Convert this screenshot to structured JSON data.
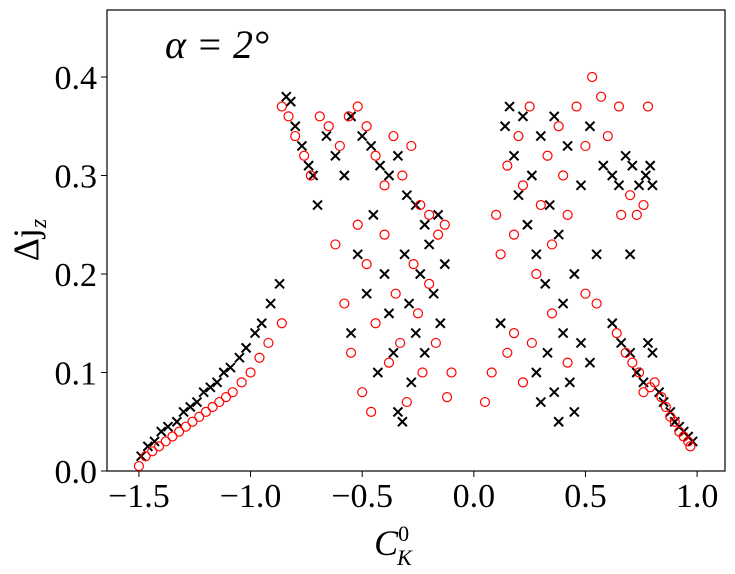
{
  "chart_data": {
    "type": "scatter",
    "annotation": "α = 2°",
    "xlabel": {
      "base": "C",
      "sup": "0",
      "sub": "K"
    },
    "ylabel": {
      "base": "Δj",
      "sub": "z"
    },
    "xlim": [
      -1.643,
      1.125
    ],
    "ylim": [
      0,
      0.468
    ],
    "xticks": [
      {
        "value": -1.5,
        "label": "−1.5"
      },
      {
        "value": -1.0,
        "label": "−1.0"
      },
      {
        "value": -0.5,
        "label": "−0.5"
      },
      {
        "value": 0.0,
        "label": "0.0"
      },
      {
        "value": 0.5,
        "label": "0.5"
      },
      {
        "value": 1.0,
        "label": "1.0"
      }
    ],
    "yticks": [
      {
        "value": 0.0,
        "label": "0.0"
      },
      0.1,
      0.2,
      0.3,
      0.4
    ],
    "grid": false,
    "series": [
      {
        "color": "#000000",
        "marker": "x",
        "x": [
          -1.49,
          -1.46,
          -1.43,
          -1.4,
          -1.37,
          -1.33,
          -1.3,
          -1.27,
          -1.24,
          -1.21,
          -1.18,
          -1.15,
          -1.12,
          -1.09,
          -1.05,
          -1.02,
          -0.98,
          -0.95,
          -0.91,
          -0.87,
          -0.84,
          -0.82,
          -0.8,
          -0.77,
          -0.74,
          -0.72,
          -0.7,
          -0.66,
          -0.62,
          -0.58,
          -0.55,
          -0.5,
          -0.46,
          -0.42,
          -0.38,
          -0.34,
          -0.3,
          -0.26,
          -0.22,
          -0.16,
          -0.55,
          -0.52,
          -0.48,
          -0.45,
          -0.43,
          -0.4,
          -0.38,
          -0.36,
          -0.34,
          -0.32,
          -0.31,
          -0.29,
          -0.28,
          -0.26,
          -0.24,
          -0.22,
          -0.2,
          -0.18,
          -0.15,
          -0.13,
          0.12,
          0.14,
          0.16,
          0.18,
          0.2,
          0.22,
          0.24,
          0.26,
          0.28,
          0.3,
          0.32,
          0.34,
          0.36,
          0.38,
          0.4,
          0.42,
          0.45,
          0.48,
          0.52,
          0.55,
          0.28,
          0.3,
          0.33,
          0.36,
          0.38,
          0.4,
          0.43,
          0.45,
          0.48,
          0.52,
          0.62,
          0.66,
          0.7,
          0.73,
          0.76,
          0.78,
          0.8,
          0.83,
          0.85,
          0.88,
          0.9,
          0.92,
          0.94,
          0.96,
          0.98,
          0.58,
          0.62,
          0.65,
          0.68,
          0.71,
          0.74,
          0.77,
          0.79,
          0.8,
          0.7
        ],
        "values": [
          0.015,
          0.025,
          0.03,
          0.04,
          0.045,
          0.05,
          0.06,
          0.065,
          0.07,
          0.08,
          0.085,
          0.09,
          0.1,
          0.105,
          0.115,
          0.125,
          0.14,
          0.15,
          0.17,
          0.19,
          0.38,
          0.375,
          0.35,
          0.33,
          0.31,
          0.3,
          0.27,
          0.34,
          0.32,
          0.3,
          0.36,
          0.34,
          0.33,
          0.31,
          0.3,
          0.32,
          0.28,
          0.27,
          0.25,
          0.26,
          0.14,
          0.22,
          0.18,
          0.26,
          0.1,
          0.2,
          0.16,
          0.12,
          0.06,
          0.05,
          0.22,
          0.17,
          0.09,
          0.14,
          0.2,
          0.12,
          0.23,
          0.18,
          0.15,
          0.21,
          0.15,
          0.35,
          0.37,
          0.32,
          0.28,
          0.36,
          0.25,
          0.3,
          0.22,
          0.34,
          0.19,
          0.27,
          0.36,
          0.24,
          0.17,
          0.33,
          0.2,
          0.29,
          0.35,
          0.22,
          0.1,
          0.07,
          0.12,
          0.08,
          0.05,
          0.14,
          0.09,
          0.06,
          0.13,
          0.11,
          0.15,
          0.13,
          0.12,
          0.1,
          0.09,
          0.13,
          0.12,
          0.08,
          0.07,
          0.06,
          0.05,
          0.045,
          0.04,
          0.035,
          0.03,
          0.31,
          0.3,
          0.29,
          0.32,
          0.31,
          0.29,
          0.3,
          0.31,
          0.29,
          0.22
        ]
      },
      {
        "color": "#ff0000",
        "marker": "o",
        "x": [
          -1.5,
          -1.47,
          -1.44,
          -1.41,
          -1.38,
          -1.35,
          -1.32,
          -1.29,
          -1.26,
          -1.23,
          -1.2,
          -1.17,
          -1.14,
          -1.11,
          -1.08,
          -1.04,
          -1.0,
          -0.96,
          -0.92,
          -0.86,
          -0.86,
          -0.83,
          -0.8,
          -0.76,
          -0.73,
          -0.69,
          -0.65,
          -0.6,
          -0.56,
          -0.52,
          -0.48,
          -0.44,
          -0.4,
          -0.36,
          -0.32,
          -0.28,
          -0.24,
          -0.2,
          -0.16,
          -0.13,
          -0.62,
          -0.58,
          -0.55,
          -0.52,
          -0.5,
          -0.48,
          -0.46,
          -0.44,
          -0.4,
          -0.38,
          -0.35,
          -0.33,
          -0.3,
          -0.27,
          -0.25,
          -0.23,
          -0.2,
          -0.17,
          -0.12,
          -0.1,
          0.1,
          0.12,
          0.15,
          0.18,
          0.2,
          0.22,
          0.25,
          0.28,
          0.3,
          0.33,
          0.35,
          0.38,
          0.4,
          0.42,
          0.46,
          0.5,
          0.53,
          0.57,
          0.6,
          0.65,
          0.05,
          0.08,
          0.15,
          0.18,
          0.22,
          0.26,
          0.35,
          0.42,
          0.5,
          0.55,
          0.64,
          0.68,
          0.71,
          0.74,
          0.76,
          0.79,
          0.81,
          0.84,
          0.86,
          0.88,
          0.9,
          0.92,
          0.94,
          0.96,
          0.97,
          0.66,
          0.7,
          0.73,
          0.76,
          0.78
        ],
        "values": [
          0.005,
          0.015,
          0.02,
          0.025,
          0.03,
          0.035,
          0.04,
          0.045,
          0.05,
          0.055,
          0.06,
          0.065,
          0.07,
          0.075,
          0.08,
          0.09,
          0.1,
          0.115,
          0.13,
          0.15,
          0.37,
          0.36,
          0.34,
          0.32,
          0.3,
          0.36,
          0.35,
          0.33,
          0.36,
          0.37,
          0.35,
          0.32,
          0.29,
          0.34,
          0.3,
          0.33,
          0.27,
          0.26,
          0.24,
          0.25,
          0.23,
          0.17,
          0.12,
          0.25,
          0.08,
          0.21,
          0.06,
          0.15,
          0.24,
          0.11,
          0.18,
          0.13,
          0.07,
          0.21,
          0.16,
          0.1,
          0.19,
          0.13,
          0.075,
          0.1,
          0.26,
          0.22,
          0.31,
          0.24,
          0.34,
          0.29,
          0.37,
          0.2,
          0.27,
          0.32,
          0.23,
          0.35,
          0.3,
          0.26,
          0.37,
          0.33,
          0.4,
          0.38,
          0.34,
          0.37,
          0.07,
          0.1,
          0.12,
          0.14,
          0.09,
          0.13,
          0.16,
          0.11,
          0.18,
          0.17,
          0.14,
          0.12,
          0.11,
          0.1,
          0.08,
          0.085,
          0.09,
          0.075,
          0.065,
          0.055,
          0.05,
          0.04,
          0.035,
          0.03,
          0.025,
          0.26,
          0.28,
          0.26,
          0.27,
          0.37
        ]
      }
    ]
  }
}
